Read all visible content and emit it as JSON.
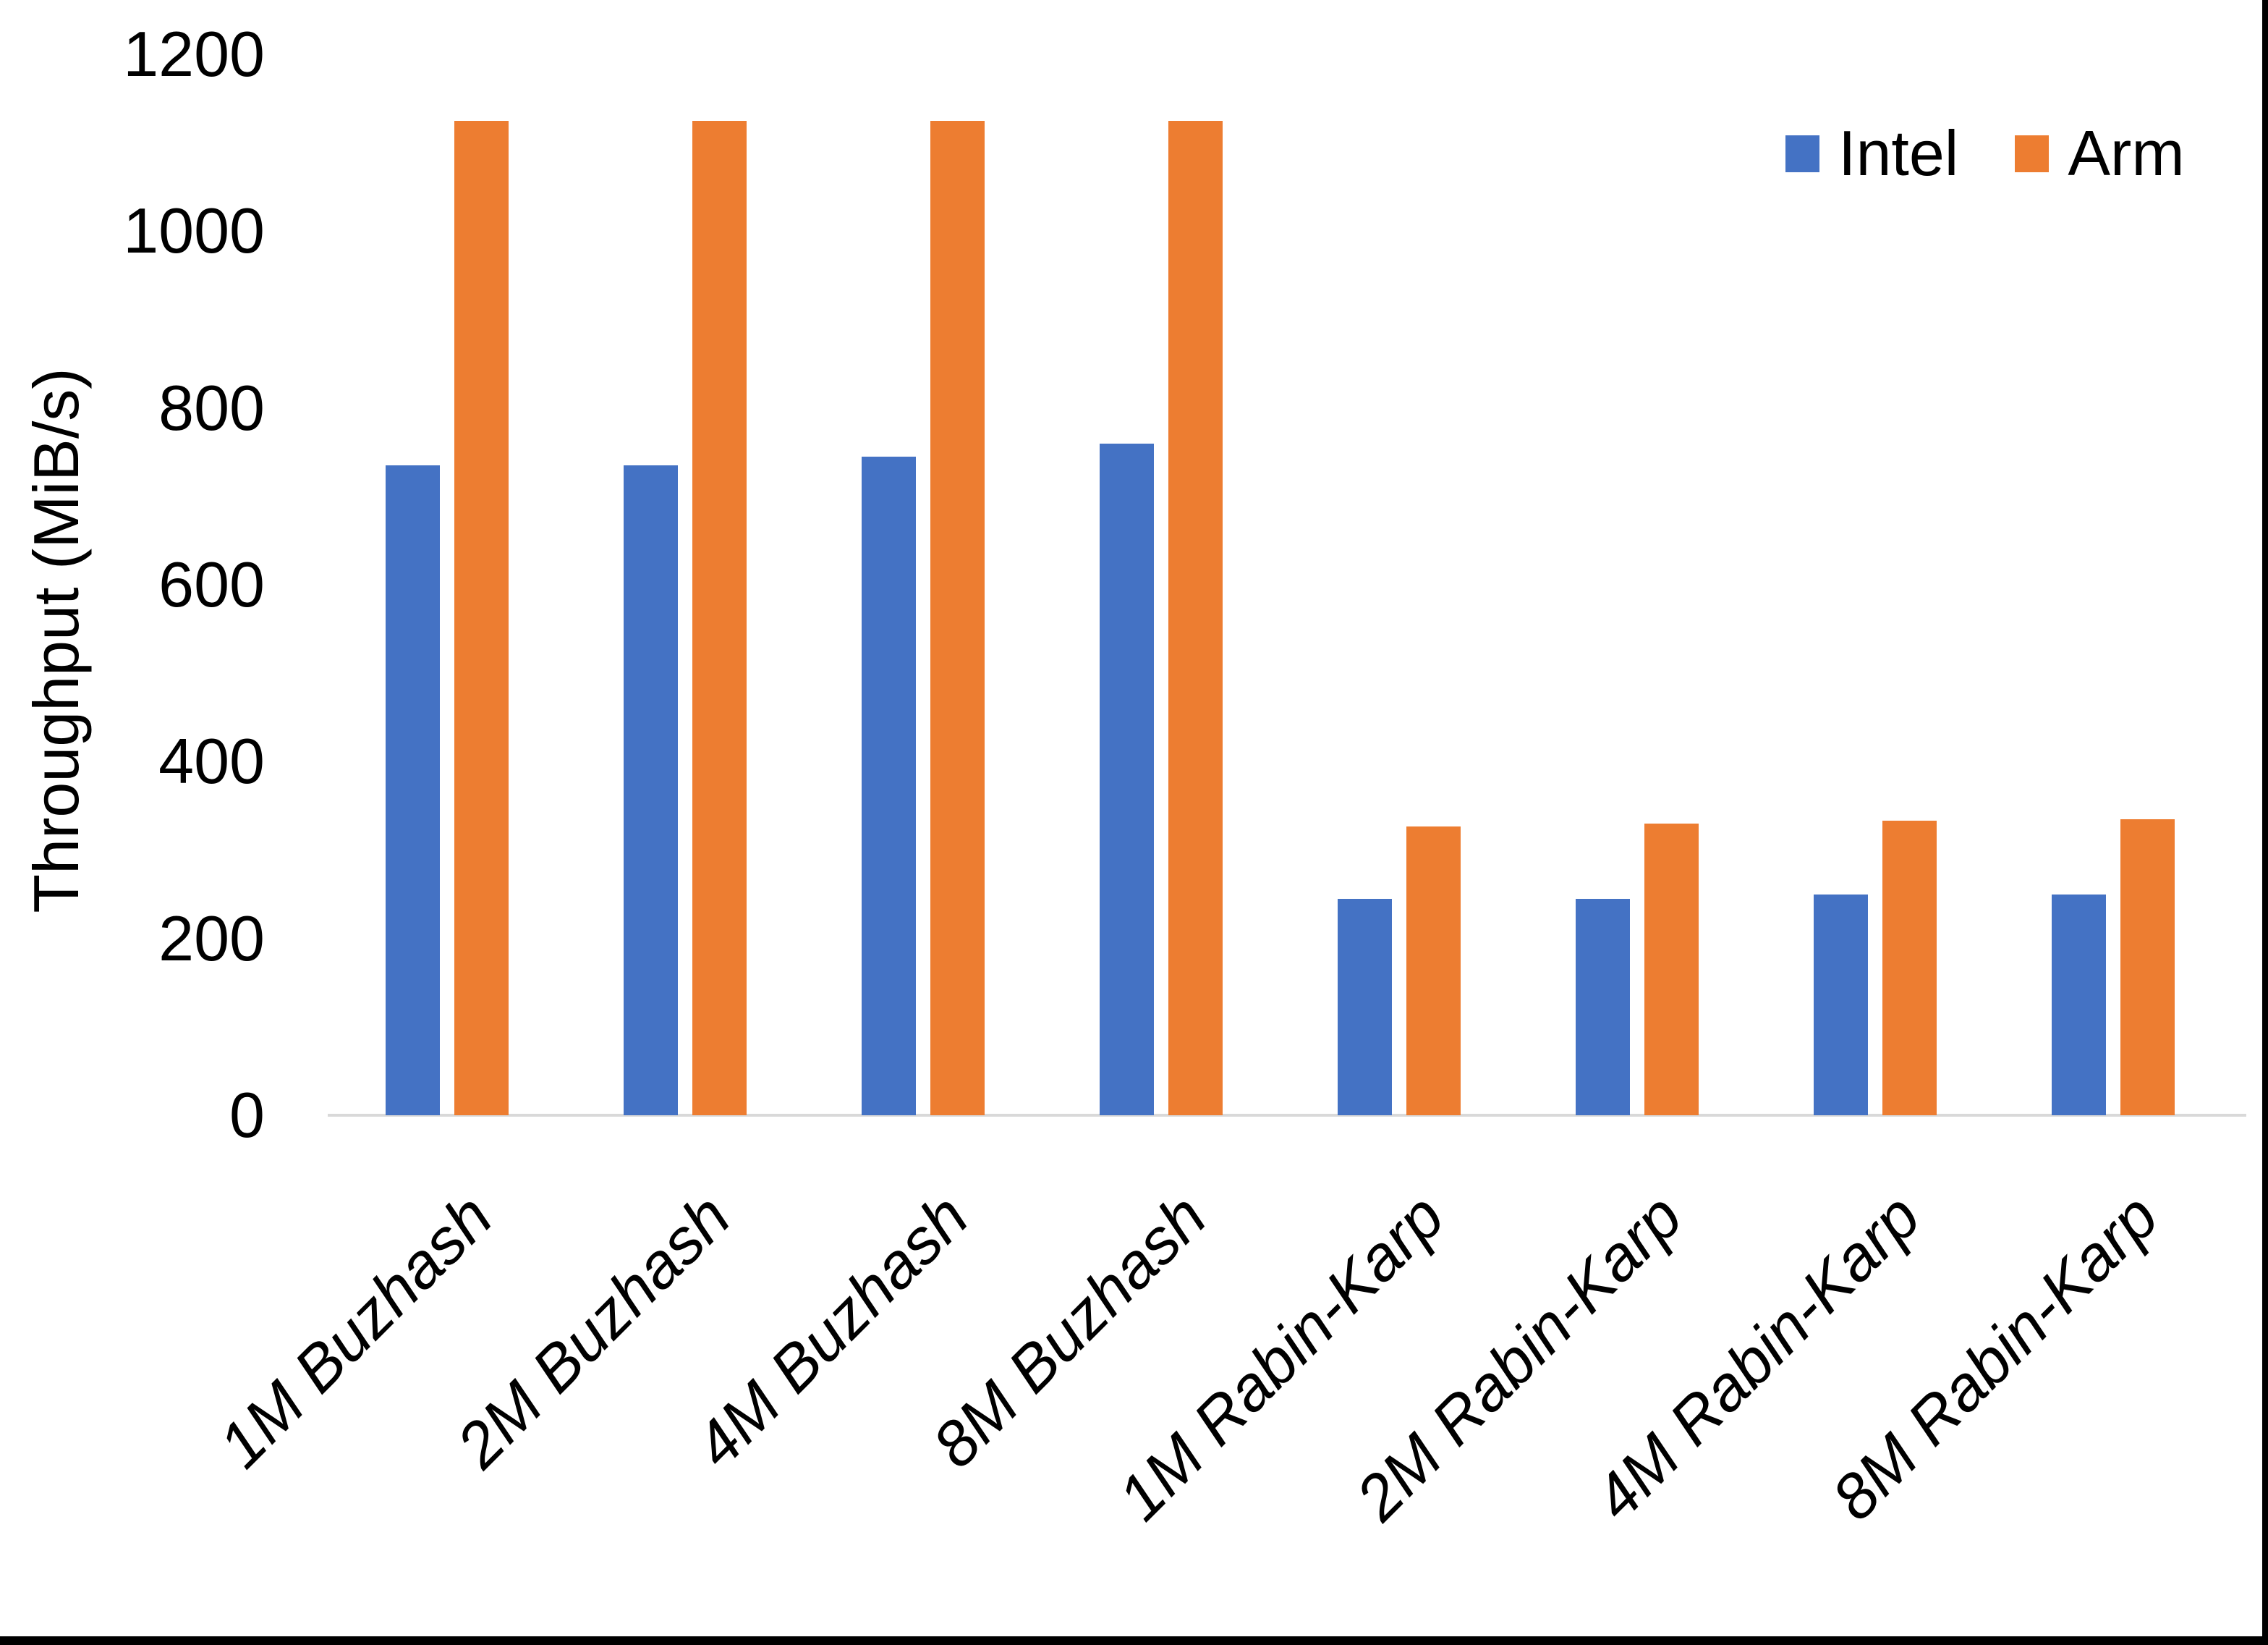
{
  "chart_data": {
    "type": "bar",
    "title": "",
    "xlabel": "",
    "ylabel": "Throughput (MiB/s)",
    "ylim": [
      0,
      1200
    ],
    "ytick_step": 200,
    "y_tick_labels": [
      "0",
      "200",
      "400",
      "600",
      "800",
      "1000",
      "1200"
    ],
    "grid": false,
    "legend_position": "top-right",
    "categories": [
      "1M Buzhash",
      "2M Buzhash",
      "4M Buzhash",
      "8M Buzhash",
      "1M Rabin-Karp",
      "2M Rabin-Karp",
      "4M Rabin-Karp",
      "8M Rabin-Karp"
    ],
    "series": [
      {
        "name": "Intel",
        "color": "#4472C4",
        "values": [
          735,
          735,
          745,
          760,
          245,
          245,
          250,
          250
        ]
      },
      {
        "name": "Arm",
        "color": "#ED7D31",
        "values": [
          1125,
          1125,
          1125,
          1125,
          327,
          330,
          333,
          335
        ]
      }
    ]
  },
  "legend": {
    "items": [
      {
        "label": "Intel",
        "color": "#4472C4"
      },
      {
        "label": "Arm",
        "color": "#ED7D31"
      }
    ]
  },
  "colors": {
    "axis_line": "#D9D9D9",
    "background": "#FFFFFF",
    "text": "#000000",
    "window_border": "#000000"
  }
}
